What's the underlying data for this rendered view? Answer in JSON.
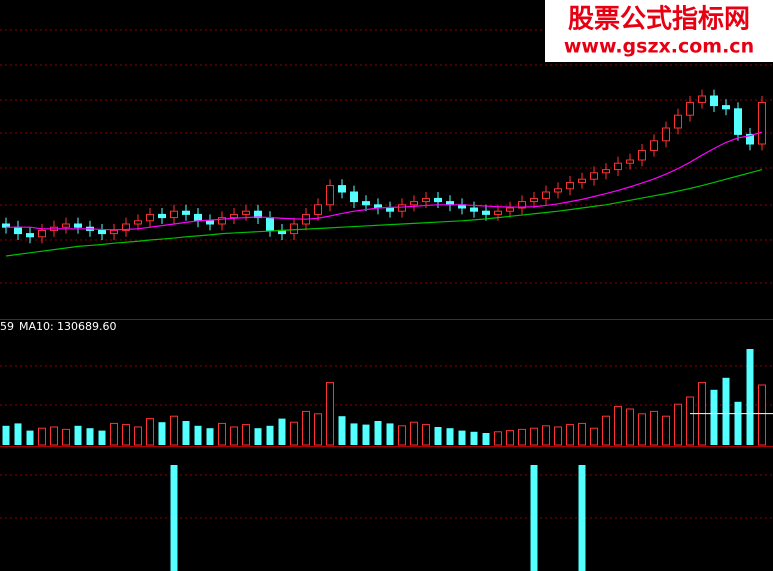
{
  "watermark": {
    "title": "股票公式指标网",
    "url": "www.gszx.com.cn"
  },
  "chart_data": [
    {
      "type": "candlestick",
      "categories": [
        null,
        null,
        null,
        null,
        null,
        null,
        null,
        null,
        null,
        null,
        null,
        null,
        null,
        null,
        null,
        null,
        null,
        null,
        null,
        null,
        null,
        null,
        null,
        null,
        null,
        null,
        null,
        null,
        null,
        null,
        null,
        null,
        null,
        null,
        null,
        null,
        null,
        null,
        null,
        null,
        null,
        null,
        null,
        null,
        null,
        null,
        null,
        null,
        null,
        null,
        null,
        null,
        null,
        null,
        null,
        null,
        null,
        null,
        null,
        null,
        null,
        null,
        null,
        null
      ],
      "open": [
        30,
        29,
        27,
        26,
        28,
        29,
        30,
        29,
        28,
        27,
        28,
        30,
        31,
        33,
        32,
        34,
        33,
        31,
        30,
        32,
        33,
        34,
        32,
        28,
        27,
        30,
        33,
        36,
        42,
        40,
        37,
        36,
        35,
        34,
        36,
        37,
        38,
        37,
        36,
        35,
        34,
        33,
        34,
        35,
        37,
        38,
        40,
        41,
        43,
        44,
        46,
        47,
        49,
        50,
        53,
        56,
        60,
        64,
        68,
        70,
        67,
        66,
        58,
        55
      ],
      "high": [
        32,
        31,
        29,
        30,
        31,
        32,
        32,
        31,
        30,
        30,
        32,
        33,
        35,
        35,
        36,
        36,
        35,
        33,
        34,
        35,
        36,
        36,
        34,
        30,
        32,
        35,
        38,
        44,
        44,
        42,
        39,
        38,
        37,
        38,
        39,
        40,
        40,
        39,
        38,
        37,
        36,
        36,
        37,
        39,
        40,
        42,
        43,
        45,
        46,
        48,
        49,
        51,
        52,
        55,
        58,
        62,
        66,
        70,
        72,
        72,
        69,
        68,
        60,
        70
      ],
      "low": [
        27,
        25,
        24,
        24,
        26,
        27,
        27,
        26,
        25,
        25,
        26,
        28,
        29,
        30,
        30,
        31,
        29,
        28,
        28,
        30,
        31,
        30,
        26,
        25,
        25,
        28,
        31,
        34,
        38,
        35,
        34,
        33,
        32,
        32,
        34,
        35,
        35,
        34,
        33,
        32,
        31,
        31,
        32,
        33,
        35,
        36,
        38,
        39,
        41,
        42,
        44,
        45,
        47,
        48,
        51,
        54,
        58,
        62,
        66,
        65,
        64,
        56,
        53,
        53
      ],
      "close": [
        29,
        27,
        26,
        28,
        29,
        30,
        29,
        28,
        27,
        28,
        30,
        31,
        33,
        32,
        34,
        33,
        31,
        30,
        32,
        33,
        34,
        32,
        28,
        27,
        30,
        33,
        36,
        42,
        40,
        37,
        36,
        35,
        34,
        36,
        37,
        38,
        37,
        36,
        35,
        34,
        33,
        34,
        35,
        37,
        38,
        40,
        41,
        43,
        44,
        46,
        47,
        49,
        50,
        53,
        56,
        60,
        64,
        68,
        70,
        67,
        66,
        58,
        55,
        68
      ],
      "up_color": "#ff3232",
      "down_color": "#54ffff",
      "lines": [
        {
          "color": "#ff00ff",
          "values": [
            29,
            29,
            29,
            28.5,
            28.5,
            28.5,
            28.5,
            28.5,
            28.3,
            28.2,
            28.3,
            28.5,
            29,
            29.5,
            30,
            30.5,
            31,
            31.2,
            31.5,
            31.8,
            32,
            32.2,
            32,
            31.8,
            31.6,
            31.5,
            31.8,
            32.5,
            33.3,
            34,
            34.5,
            35,
            35.2,
            35.3,
            35.5,
            35.8,
            36,
            36,
            36,
            35.8,
            35.6,
            35.4,
            35.3,
            35.3,
            35.4,
            35.8,
            36.3,
            37,
            37.7,
            38.6,
            39.5,
            40.5,
            41.6,
            42.8,
            44.1,
            45.6,
            47.3,
            49.3,
            51.5,
            53.6,
            55.5,
            56.9,
            57.6,
            58.7
          ]
        },
        {
          "color": "#00c000",
          "values": [
            20,
            20.5,
            21,
            21.5,
            22,
            22.5,
            23,
            23.3,
            23.6,
            24,
            24.3,
            24.6,
            25,
            25.3,
            25.6,
            26,
            26.3,
            26.6,
            27,
            27.2,
            27.4,
            27.6,
            27.8,
            28,
            28.2,
            28.4,
            28.6,
            28.8,
            29,
            29.2,
            29.4,
            29.6,
            29.8,
            30,
            30.2,
            30.4,
            30.6,
            30.8,
            31,
            31.3,
            31.6,
            32,
            32.4,
            32.8,
            33.2,
            33.6,
            34,
            34.5,
            35,
            35.5,
            36,
            36.7,
            37.4,
            38.1,
            38.8,
            39.5,
            40.3,
            41.1,
            42,
            43,
            44,
            45,
            46,
            47
          ]
        }
      ],
      "ylim": [
        0,
        100
      ]
    },
    {
      "type": "bar",
      "legend_prefix": "59",
      "ma10_label": "MA10:",
      "ma10": {
        "value": 130689.6,
        "label": "130689.60"
      },
      "values": [
        80000,
        90000,
        60000,
        70000,
        75000,
        65000,
        80000,
        70000,
        60000,
        90000,
        85000,
        75000,
        110000,
        95000,
        120000,
        100000,
        80000,
        70000,
        90000,
        75000,
        85000,
        70000,
        80000,
        110000,
        95000,
        140000,
        130000,
        260000,
        120000,
        90000,
        85000,
        100000,
        90000,
        80000,
        95000,
        85000,
        75000,
        70000,
        60000,
        55000,
        50000,
        55000,
        60000,
        65000,
        70000,
        80000,
        75000,
        85000,
        90000,
        70000,
        120000,
        160000,
        150000,
        130000,
        140000,
        120000,
        170000,
        200000,
        260000,
        230000,
        280000,
        180000,
        400000,
        250000
      ],
      "ylim": [
        0,
        500000
      ]
    },
    {
      "type": "bar",
      "color": "#54ffff",
      "values": [
        0,
        0,
        0,
        0,
        0,
        0,
        0,
        0,
        0,
        0,
        0,
        0,
        0,
        0,
        1,
        0,
        0,
        0,
        0,
        0,
        0,
        0,
        0,
        0,
        0,
        0,
        0,
        0,
        0,
        0,
        0,
        0,
        0,
        0,
        0,
        0,
        0,
        0,
        0,
        0,
        0,
        0,
        0,
        0,
        1,
        0,
        0,
        0,
        1,
        0,
        0,
        0,
        0,
        0,
        0,
        0,
        0,
        0,
        0,
        0,
        0,
        0,
        0,
        0
      ],
      "ylim": [
        0,
        1
      ]
    }
  ]
}
